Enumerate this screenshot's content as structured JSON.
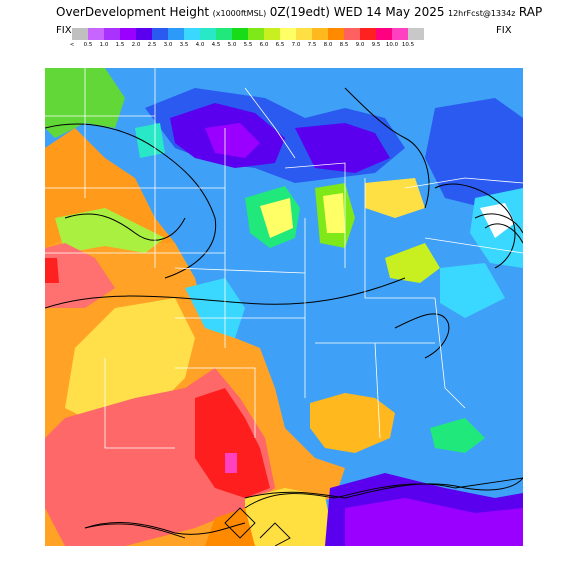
{
  "header": {
    "title_main": "OverDevelopment Height",
    "title_units": "(x1000ftMSL)",
    "title_time": "0Z(19edt) WED 14 May 2025",
    "title_fcst": "12hrFcst@1334z",
    "title_model": "RAP"
  },
  "legend": {
    "fix_left": "FIX",
    "fix_right": "FIX",
    "low_marker": "<",
    "ticks": [
      "0.5",
      "1.0",
      "1.5",
      "2.0",
      "2.5",
      "3.0",
      "3.5",
      "4.0",
      "4.5",
      "5.0",
      "5.5",
      "6.0",
      "6.5",
      "7.0",
      "7.5",
      "8.0",
      "8.5",
      "9.0",
      "9.5",
      "10.0",
      "10.5"
    ],
    "colors": [
      "#c0c0c0",
      "#c864ff",
      "#aa32ff",
      "#9a00ff",
      "#5a00ee",
      "#2a5af0",
      "#2c9af8",
      "#3ad8ff",
      "#28e8c8",
      "#20e87a",
      "#18dc18",
      "#7ee818",
      "#c8f020",
      "#ffff66",
      "#ffe044",
      "#ffb81e",
      "#ff8a00",
      "#ff6060",
      "#ff2020",
      "#ff0080",
      "#ff40c0",
      "#c8c8c8"
    ]
  }
}
